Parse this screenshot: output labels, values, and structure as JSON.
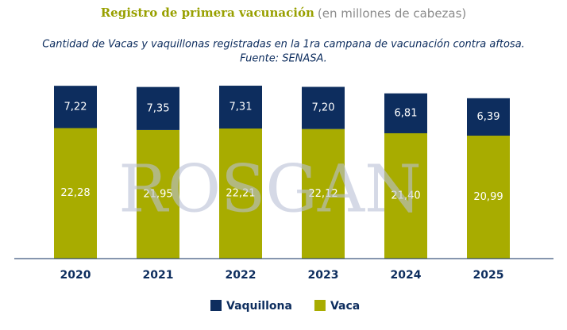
{
  "chart_data": {
    "type": "stacked_bar",
    "title": "Registro de primera vacunación",
    "title_note": "(en millones de cabezas)",
    "subtitle": [
      "Cantidad de Vacas y vaquillonas registradas en la 1ra campana de vacunación contra aftosa.",
      "Fuente: SENASA."
    ],
    "watermark": "ROSGAN",
    "categories": [
      "2020",
      "2021",
      "2022",
      "2023",
      "2024",
      "2025"
    ],
    "series": [
      {
        "name": "Vaca",
        "color": "#a8ac00",
        "values": [
          22.28,
          21.95,
          22.21,
          22.12,
          21.4,
          20.99
        ],
        "value_labels": [
          "22,28",
          "21,95",
          "22,21",
          "22,12",
          "21,40",
          "20,99"
        ]
      },
      {
        "name": "Vaquillona",
        "color": "#0d2d5e",
        "values": [
          7.22,
          7.35,
          7.31,
          7.2,
          6.81,
          6.39
        ],
        "value_labels": [
          "7,22",
          "7,35",
          "7,31",
          "7,20",
          "6,81",
          "6,39"
        ]
      }
    ],
    "ylim": [
      0,
      30.2
    ],
    "legend": "bottom"
  }
}
